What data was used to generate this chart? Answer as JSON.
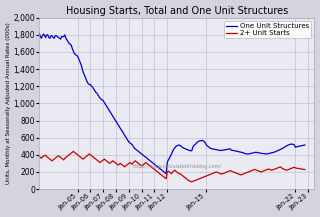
{
  "title": "Housing Starts, Total and One Unit Structures",
  "ylabel": "Units, Monthly at Seasonally Adjusted Annual Rates (000s)",
  "watermark": "https://www.calculatedriskblog.com/",
  "legend_entries": [
    "One Unit Structures",
    "2+ Unit Starts"
  ],
  "line_colors": [
    "#0000cc",
    "#cc0000"
  ],
  "fig_bg_color": "#d4d4e0",
  "plot_bg_color": "#eaeaf2",
  "grid_color": "#c8c8d8",
  "ylim": [
    0,
    2000
  ],
  "yticks": [
    0,
    200,
    400,
    600,
    800,
    1000,
    1200,
    1400,
    1600,
    1800,
    2000
  ],
  "xlim_start": 2002.0,
  "xlim_end": 2023.5,
  "xtick_pos": [
    2005,
    2006,
    2007,
    2008,
    2009,
    2010,
    2011,
    2012,
    2015,
    2022,
    2023
  ],
  "xtick_lab": [
    "Jan-05",
    "Jan-06",
    "Jan-07",
    "Jan-08",
    "Jan-09",
    "Jan-10",
    "Jan-11",
    "Jan-12",
    "Jan-15",
    "Jan-22",
    "Jan-23"
  ],
  "data_x_start": 2002.0,
  "one_unit": [
    1820,
    1780,
    1760,
    1790,
    1810,
    1790,
    1770,
    1800,
    1800,
    1770,
    1760,
    1790,
    1790,
    1770,
    1760,
    1790,
    1790,
    1780,
    1770,
    1760,
    1750,
    1780,
    1780,
    1780,
    1800,
    1760,
    1740,
    1720,
    1700,
    1690,
    1680,
    1640,
    1610,
    1580,
    1570,
    1560,
    1550,
    1520,
    1490,
    1460,
    1420,
    1370,
    1340,
    1310,
    1280,
    1250,
    1230,
    1220,
    1220,
    1200,
    1190,
    1170,
    1150,
    1130,
    1120,
    1100,
    1080,
    1060,
    1050,
    1040,
    1030,
    1010,
    990,
    970,
    950,
    930,
    910,
    890,
    870,
    850,
    830,
    810,
    790,
    770,
    750,
    730,
    710,
    690,
    670,
    650,
    630,
    610,
    590,
    570,
    550,
    540,
    530,
    520,
    500,
    480,
    470,
    460,
    450,
    440,
    430,
    420,
    410,
    400,
    390,
    380,
    370,
    360,
    350,
    340,
    330,
    320,
    310,
    300,
    290,
    280,
    270,
    260,
    250,
    240,
    230,
    220,
    210,
    200,
    190,
    180,
    310,
    340,
    360,
    385,
    410,
    440,
    465,
    480,
    495,
    505,
    510,
    515,
    510,
    500,
    490,
    480,
    475,
    470,
    465,
    460,
    455,
    450,
    448,
    448,
    490,
    510,
    520,
    530,
    545,
    555,
    560,
    565,
    565,
    570,
    560,
    550,
    530,
    510,
    500,
    490,
    480,
    475,
    470,
    468,
    465,
    463,
    460,
    458,
    455,
    453,
    450,
    452,
    453,
    455,
    458,
    460,
    462,
    465,
    468,
    470,
    455,
    453,
    450,
    448,
    445,
    443,
    440,
    435,
    432,
    430,
    428,
    426,
    418,
    415,
    413,
    410,
    410,
    412,
    415,
    418,
    422,
    425,
    428,
    430,
    428,
    425,
    423,
    420,
    418,
    416,
    415,
    413,
    412,
    410,
    412,
    415,
    418,
    422,
    425,
    428,
    430,
    435,
    440,
    445,
    450,
    456,
    462,
    468,
    475,
    482,
    490,
    498,
    505,
    512,
    518,
    522,
    525,
    525,
    522,
    518,
    490,
    492,
    495,
    498,
    500,
    503,
    506,
    510,
    512,
    515
  ],
  "two_unit": [
    380,
    370,
    360,
    375,
    385,
    390,
    395,
    380,
    370,
    360,
    350,
    340,
    330,
    340,
    350,
    360,
    370,
    380,
    390,
    380,
    370,
    360,
    350,
    340,
    360,
    370,
    380,
    390,
    400,
    410,
    420,
    430,
    440,
    430,
    420,
    410,
    400,
    390,
    380,
    370,
    360,
    350,
    360,
    370,
    380,
    390,
    400,
    410,
    400,
    390,
    380,
    370,
    360,
    350,
    340,
    330,
    320,
    310,
    320,
    330,
    340,
    350,
    340,
    330,
    320,
    310,
    300,
    310,
    320,
    330,
    320,
    310,
    300,
    290,
    280,
    290,
    300,
    290,
    280,
    270,
    260,
    270,
    280,
    290,
    300,
    310,
    300,
    290,
    310,
    320,
    330,
    320,
    310,
    300,
    290,
    280,
    270,
    280,
    290,
    300,
    310,
    300,
    290,
    280,
    270,
    260,
    250,
    240,
    230,
    220,
    210,
    200,
    190,
    180,
    170,
    160,
    150,
    140,
    130,
    120,
    200,
    210,
    200,
    190,
    180,
    200,
    210,
    220,
    210,
    200,
    190,
    180,
    180,
    170,
    160,
    150,
    140,
    130,
    120,
    110,
    100,
    95,
    90,
    85,
    90,
    95,
    100,
    105,
    110,
    115,
    120,
    125,
    130,
    135,
    140,
    145,
    150,
    155,
    160,
    165,
    170,
    175,
    180,
    185,
    190,
    195,
    200,
    195,
    190,
    185,
    180,
    175,
    180,
    185,
    190,
    195,
    200,
    205,
    210,
    215,
    210,
    205,
    200,
    195,
    190,
    185,
    180,
    175,
    170,
    165,
    170,
    175,
    180,
    185,
    190,
    195,
    200,
    205,
    210,
    215,
    220,
    225,
    230,
    225,
    220,
    215,
    210,
    205,
    200,
    205,
    210,
    215,
    220,
    225,
    230,
    235,
    230,
    225,
    220,
    225,
    230,
    235,
    240,
    245,
    250,
    255,
    260,
    250,
    240,
    235,
    230,
    225,
    220,
    225,
    230,
    235,
    240,
    245,
    250,
    255,
    248,
    245,
    242,
    240,
    238,
    236,
    234,
    232,
    230,
    228
  ]
}
